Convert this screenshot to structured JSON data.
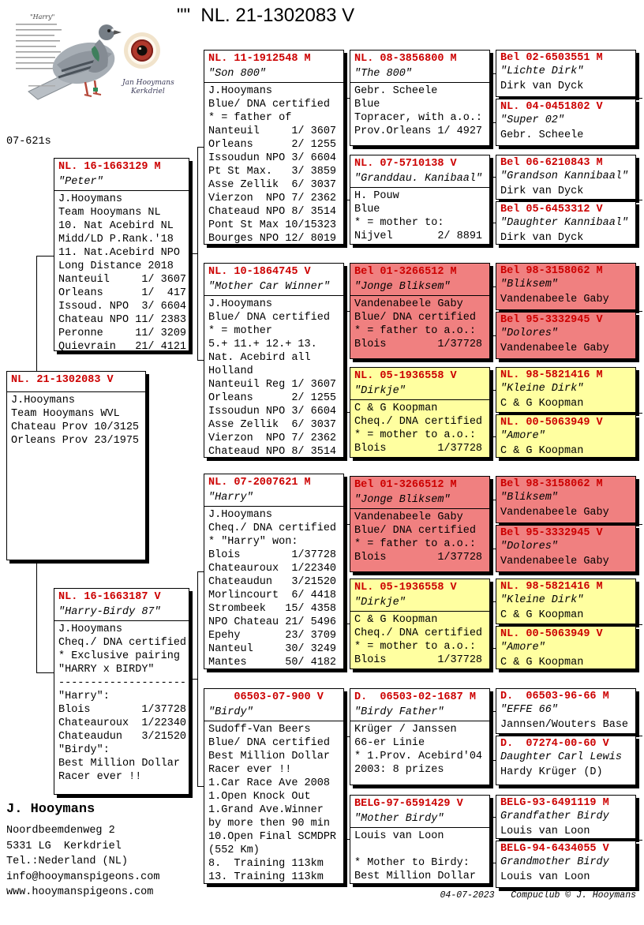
{
  "title": "\"\"  NL. 21-1302083 V",
  "photo": {
    "pigeon_label": "\"Harry\"",
    "caption_line1": "Jan Hooymans",
    "caption_line2": "Kerkdriel",
    "code": "07-621s"
  },
  "colors": {
    "ring_red": "#cc0000",
    "pink": "#f08080",
    "yellow": "#ffffa0"
  },
  "boxes": {
    "peter": {
      "ring": "NL. 16-1663129 M",
      "name": "\"Peter\"",
      "lines": [
        "J.Hooymans",
        "Team Hooymans NL",
        "10. Nat Acebird NL",
        "Midd/LD P.Rank.'18",
        "11. Nat.Acebird NPO",
        "Long Distance 2018",
        "Nanteuil     1/ 3607",
        "Orleans      1/  417",
        "Issoud. NPO  3/ 6604",
        "Chateau NPO 11/ 2383",
        "Peronne     11/ 3209",
        "Quievrain   21/ 4121"
      ]
    },
    "main": {
      "ring": "NL. 21-1302083 V",
      "name": "",
      "lines": [
        "J.Hooymans",
        "Team Hooymans WVL",
        "Chateau Prov 10/3125",
        "Orleans Prov 23/1975"
      ]
    },
    "harry_birdy": {
      "ring": "NL. 16-1663187 V",
      "name": "\"Harry-Birdy 87\"",
      "lines": [
        "J.Hooymans",
        "Cheq./ DNA certified",
        "* Exclusive pairing",
        "\"HARRY x BIRDY\"",
        "--------------------",
        "\"Harry\":",
        "Blois        1/37728",
        "Chateauroux  1/22340",
        "Chateaudun   3/21520",
        "\"Birdy\":",
        "Best Million Dollar",
        "Racer ever !!"
      ]
    },
    "son800": {
      "ring": "NL. 11-1912548 M",
      "name": "\"Son 800\"",
      "lines": [
        "J.Hooymans",
        "Blue/ DNA certified",
        "* = father of",
        "Nanteuil     1/ 3607",
        "Orleans      2/ 1255",
        "Issoudun NPO 3/ 6604",
        "Pt St Max.   3/ 3859",
        "Asse Zellik  6/ 3037",
        "Vierzon  NPO 7/ 2362",
        "Chateaud NPO 8/ 3514",
        "Pont St Max 10/15323",
        "Bourges NPO 12/ 8019"
      ]
    },
    "mother_car_winner": {
      "ring": "NL. 10-1864745 V",
      "name": "\"Mother Car Winner\"",
      "lines": [
        "J.Hooymans",
        "Blue/ DNA certified",
        "* = mother",
        "5.+ 11.+ 12.+ 13.",
        "Nat. Acebird all",
        "Holland",
        "Nanteuil Reg 1/ 3607",
        "Orleans      2/ 1255",
        "Issoudun NPO 3/ 6604",
        "Asse Zellik  6/ 3037",
        "Vierzon  NPO 7/ 2362",
        "Chateaud NPO 8/ 3514"
      ]
    },
    "harry": {
      "ring": "NL. 07-2007621 M",
      "name": "\"Harry\"",
      "lines": [
        "J.Hooymans",
        "Cheq./ DNA certified",
        "* \"Harry\" won:",
        "Blois        1/37728",
        "Chateauroux  1/22340",
        "Chateaudun   3/21520",
        "Morlincourt  6/ 4418",
        "Strombeek   15/ 4358",
        "NPO Chateau 21/ 5496",
        "Epehy       23/ 3709",
        "Nanteul     30/ 3249",
        "Mantes      50/ 4182"
      ]
    },
    "birdy": {
      "ring": "    06503-07-900 V",
      "name": "\"Birdy\"",
      "lines": [
        "Sudoff-Van Beers",
        "Blue/ DNA certified",
        "Best Million Dollar",
        "Racer ever !!",
        "1.Car Race Ave 2008",
        "1.Open Knock Out",
        "1.Grand Ave.Winner",
        "by more then 90 min",
        "10.Open Final SCMDPR",
        "(552 Km)",
        "8.  Training 113km",
        "13. Training 113km"
      ]
    },
    "the800": {
      "ring": "NL. 08-3856800 M",
      "name": "\"The 800\"",
      "lines": [
        "Gebr. Scheele",
        "Blue",
        "Topracer, with a.o.:",
        "Prov.Orleans 1/ 4927"
      ]
    },
    "granddau_kanibaal": {
      "ring": "NL. 07-5710138 V",
      "name": "\"Granddau. Kanibaal\"",
      "lines": [
        "H. Pouw",
        "Blue",
        "* = mother to:",
        "Nijvel       2/ 8891"
      ]
    },
    "jonge_bliksem": {
      "ring": "Bel 01-3266512 M",
      "name": "\"Jonge Bliksem\"",
      "lines": [
        "Vandenabeele Gaby",
        "Blue/ DNA certified",
        "* = father to a.o.:",
        "Blois        1/37728"
      ]
    },
    "dirkje": {
      "ring": "NL. 05-1936558 V",
      "name": "\"Dirkje\"",
      "lines": [
        "C & G Koopman",
        "Cheq./ DNA certified",
        "* = mother to a.o.:",
        "Blois        1/37728"
      ]
    },
    "birdy_father": {
      "ring": "D.  06503-02-1687 M",
      "name": "\"Birdy Father\"",
      "lines": [
        "Krüger / Janssen",
        "66-er Linie",
        "* 1.Prov. Acebird'04",
        "2003: 8 prizes"
      ]
    },
    "mother_birdy": {
      "ring": "BELG-97-6591429 V",
      "name": "\"Mother Birdy\"",
      "lines": [
        "Louis van Loon",
        "",
        "* Mother to Birdy:",
        "Best Million Dollar"
      ]
    },
    "lichte_dirk": {
      "ring": "Bel 02-6503551 M",
      "name": "\"Lichte Dirk\"",
      "lines": [
        "Dirk van Dyck"
      ]
    },
    "super02": {
      "ring": "NL. 04-0451802 V",
      "name": "\"Super 02\"",
      "lines": [
        "Gebr. Scheele"
      ]
    },
    "grandson_kannibaal": {
      "ring": "Bel 06-6210843 M",
      "name": "\"Grandson Kannibaal\"",
      "lines": [
        "Dirk van Dyck"
      ]
    },
    "daughter_kannibaal": {
      "ring": "Bel 05-6453312 V",
      "name": "\"Daughter Kannibaal\"",
      "lines": [
        "Dirk van Dyck"
      ]
    },
    "bliksem": {
      "ring": "Bel 98-3158062 M",
      "name": "\"Bliksem\"",
      "lines": [
        "Vandenabeele Gaby"
      ]
    },
    "dolores": {
      "ring": "Bel 95-3332945 V",
      "name": "\"Dolores\"",
      "lines": [
        "Vandenabeele Gaby"
      ]
    },
    "kleine_dirk": {
      "ring": "NL. 98-5821416 M",
      "name": "\"Kleine Dirk\"",
      "lines": [
        "C & G Koopman"
      ]
    },
    "amore": {
      "ring": "NL. 00-5063949 V",
      "name": "\"Amore\"",
      "lines": [
        "C & G Koopman"
      ]
    },
    "effe66": {
      "ring": "D.  06503-96-66 M",
      "name": "\"EFFE 66\"",
      "lines": [
        "Jannsen/Wouters Base"
      ]
    },
    "daughter_carl_lewis": {
      "ring": "D.  07274-00-60 V",
      "name": "Daughter Carl Lewis",
      "lines": [
        "Hardy Krüger (D)"
      ]
    },
    "grandfather_birdy": {
      "ring": "BELG-93-6491119 M",
      "name": "Grandfather Birdy",
      "lines": [
        "Louis van Loon"
      ]
    },
    "grandmother_birdy": {
      "ring": "BELG-94-6434055 V",
      "name": "Grandmother Birdy",
      "lines": [
        "Louis van Loon"
      ]
    }
  },
  "owner": {
    "name": "J. Hooymans",
    "lines": [
      "Noordbeemdenweg 2",
      "5331 LG  Kerkdriel",
      "Tel.:Nederland (NL)",
      "info@hooymanspigeons.com",
      "www.hooymanspigeons.com"
    ]
  },
  "print_footer": {
    "date": "04-07-2023",
    "credit": "Compuclub © J. Hooymans"
  }
}
